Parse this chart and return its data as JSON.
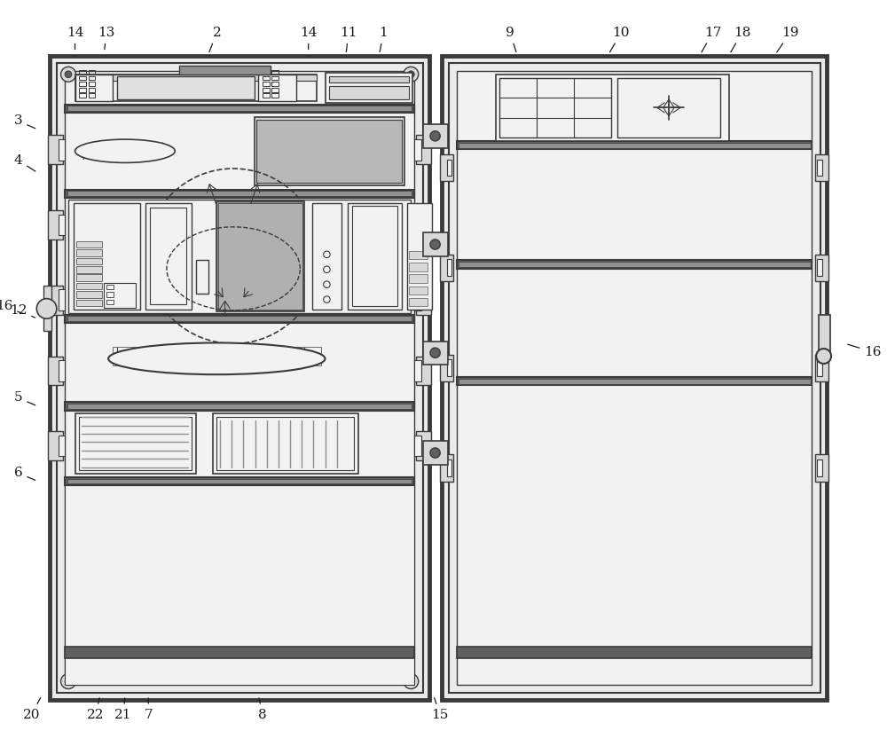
{
  "bg_color": "#ffffff",
  "lc": "#3a3a3a",
  "fc_light": "#f2f2f2",
  "fc_mid": "#d8d8d8",
  "fc_dark": "#909090",
  "fc_darker": "#606060",
  "fig_w": 10.0,
  "fig_h": 8.5,
  "dpi": 100
}
